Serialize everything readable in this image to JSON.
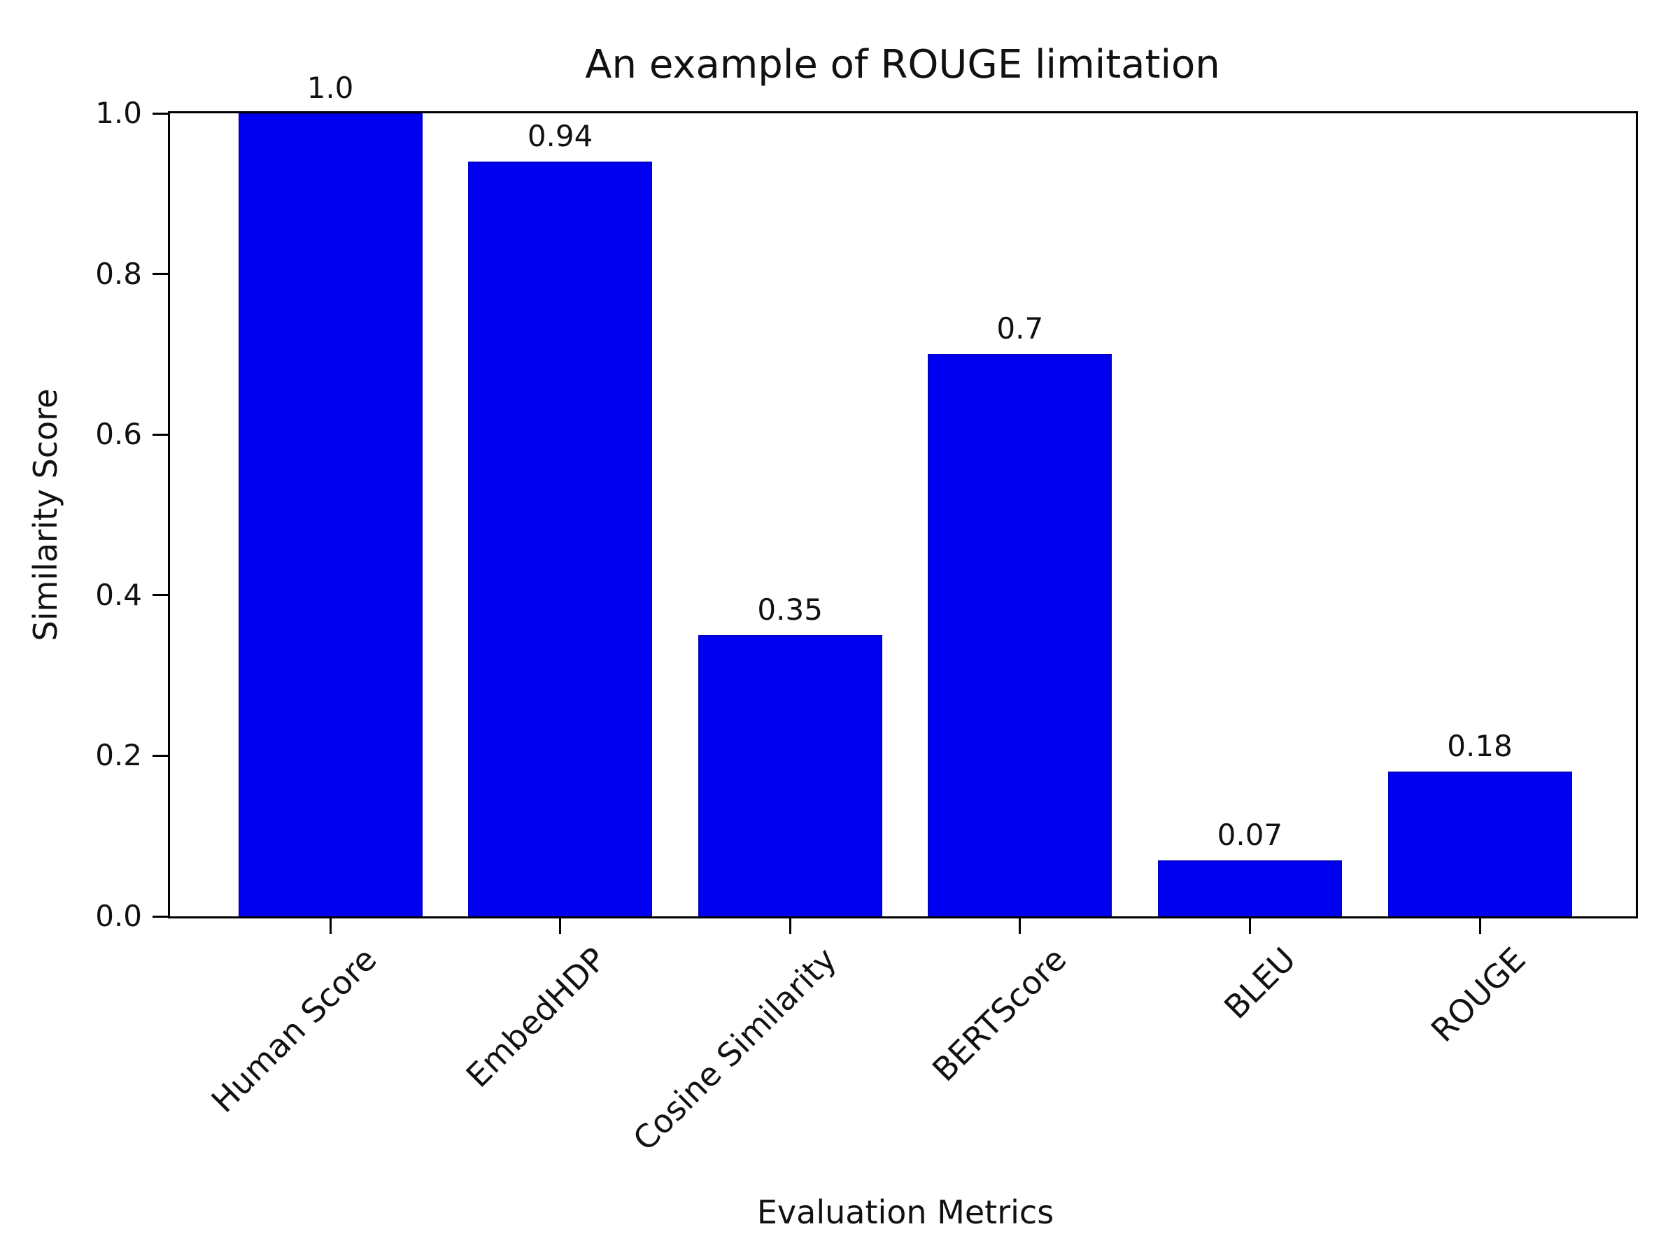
{
  "chart_data": {
    "type": "bar",
    "title": "An example of ROUGE limitation",
    "xlabel": "Evaluation Metrics",
    "ylabel": "Similarity Score",
    "categories": [
      "Human Score",
      "EmbedHDP",
      "Cosine Similarity",
      "BERTScore",
      "BLEU",
      "ROUGE"
    ],
    "values": [
      1.0,
      0.94,
      0.35,
      0.7,
      0.07,
      0.18
    ],
    "value_labels": [
      "1.0",
      "0.94",
      "0.35",
      "0.7",
      "0.07",
      "0.18"
    ],
    "y_ticks": [
      0.0,
      0.2,
      0.4,
      0.6,
      0.8,
      1.0
    ],
    "y_tick_labels": [
      "0.0",
      "0.2",
      "0.4",
      "0.6",
      "0.8",
      "1.0"
    ],
    "ylim": [
      0.0,
      1.0
    ],
    "bar_color": "#0000f0",
    "axis_color": "#000000",
    "grid": false,
    "legend": null,
    "x_tick_label_rotation_deg": 45
  }
}
